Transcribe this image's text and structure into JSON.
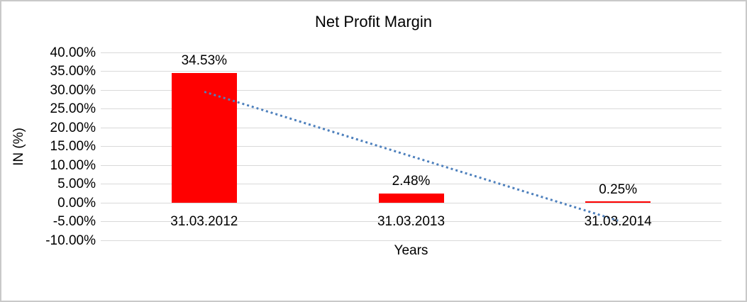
{
  "chart_data": {
    "type": "bar",
    "title": "Net Profit Margin",
    "xlabel": "Years",
    "ylabel": "IN (%)",
    "categories": [
      "31.03.2012",
      "31.03.2013",
      "31.03.2014"
    ],
    "values": [
      34.53,
      2.48,
      0.25
    ],
    "data_labels": [
      "34.53%",
      "2.48%",
      "0.25%"
    ],
    "ylim": [
      -10,
      40
    ],
    "ytick_step": 5,
    "ytick_labels": [
      "40.00%",
      "35.00%",
      "30.00%",
      "25.00%",
      "20.00%",
      "15.00%",
      "10.00%",
      "5.00%",
      "0.00%",
      "-5.00%",
      "-10.00%"
    ],
    "grid": true,
    "legend": "none",
    "bar_color": "#ff0000",
    "gridline_color": "#d9d9d9",
    "trendline": {
      "type": "linear",
      "style": "dotted",
      "color": "#4f81bd",
      "start_value": 29.6,
      "end_value": -4.7
    }
  }
}
